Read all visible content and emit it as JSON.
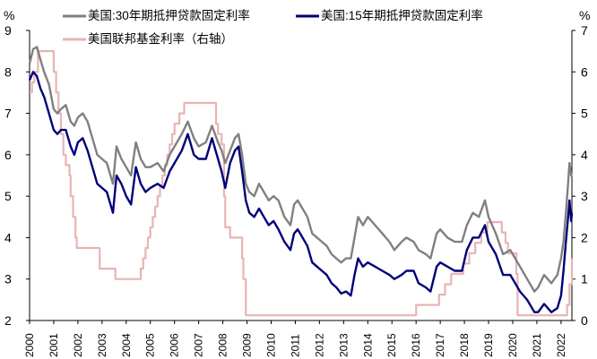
{
  "chart_data": {
    "type": "line",
    "title": "",
    "left_axis": {
      "unit": "%",
      "ylim": [
        2,
        9
      ],
      "ticks": [
        2,
        3,
        4,
        5,
        6,
        7,
        8,
        9
      ]
    },
    "right_axis": {
      "unit": "%",
      "ylim": [
        0,
        7
      ],
      "ticks": [
        0,
        1,
        2,
        3,
        4,
        5,
        6,
        7
      ]
    },
    "x_ticks": [
      "2000",
      "2001",
      "2002",
      "2003",
      "2004",
      "2005",
      "2006",
      "2007",
      "2008",
      "2009",
      "2010",
      "2011",
      "2012",
      "2013",
      "2014",
      "2015",
      "2016",
      "2017",
      "2018",
      "2019",
      "2020",
      "2021",
      "2022"
    ],
    "xlim": [
      2000.0,
      2022.45
    ],
    "legend_position": "top",
    "series": [
      {
        "name": "美国:30年期抵押贷款固定利率",
        "axis": "left",
        "color": "#808080",
        "points": [
          [
            2000.0,
            8.2
          ],
          [
            2000.15,
            8.55
          ],
          [
            2000.3,
            8.6
          ],
          [
            2000.45,
            8.3
          ],
          [
            2000.6,
            8.0
          ],
          [
            2000.8,
            7.7
          ],
          [
            2001.0,
            7.1
          ],
          [
            2001.15,
            7.0
          ],
          [
            2001.3,
            7.1
          ],
          [
            2001.5,
            7.2
          ],
          [
            2001.7,
            6.8
          ],
          [
            2001.85,
            6.7
          ],
          [
            2002.0,
            6.9
          ],
          [
            2002.2,
            7.0
          ],
          [
            2002.4,
            6.8
          ],
          [
            2002.6,
            6.4
          ],
          [
            2002.8,
            6.0
          ],
          [
            2003.0,
            5.9
          ],
          [
            2003.2,
            5.8
          ],
          [
            2003.45,
            5.3
          ],
          [
            2003.6,
            6.2
          ],
          [
            2003.8,
            5.9
          ],
          [
            2004.0,
            5.7
          ],
          [
            2004.2,
            5.5
          ],
          [
            2004.4,
            6.3
          ],
          [
            2004.6,
            5.9
          ],
          [
            2004.8,
            5.7
          ],
          [
            2005.0,
            5.7
          ],
          [
            2005.3,
            5.8
          ],
          [
            2005.55,
            5.6
          ],
          [
            2005.8,
            6.0
          ],
          [
            2006.0,
            6.2
          ],
          [
            2006.3,
            6.5
          ],
          [
            2006.55,
            6.8
          ],
          [
            2006.8,
            6.4
          ],
          [
            2007.0,
            6.2
          ],
          [
            2007.3,
            6.3
          ],
          [
            2007.55,
            6.7
          ],
          [
            2007.8,
            6.3
          ],
          [
            2007.95,
            6.1
          ],
          [
            2008.1,
            5.8
          ],
          [
            2008.3,
            6.1
          ],
          [
            2008.5,
            6.4
          ],
          [
            2008.65,
            6.5
          ],
          [
            2008.8,
            6.0
          ],
          [
            2008.95,
            5.3
          ],
          [
            2009.1,
            5.1
          ],
          [
            2009.3,
            5.0
          ],
          [
            2009.5,
            5.3
          ],
          [
            2009.7,
            5.1
          ],
          [
            2009.9,
            4.9
          ],
          [
            2010.1,
            5.0
          ],
          [
            2010.3,
            4.9
          ],
          [
            2010.55,
            4.5
          ],
          [
            2010.8,
            4.3
          ],
          [
            2010.95,
            4.8
          ],
          [
            2011.1,
            4.9
          ],
          [
            2011.3,
            4.7
          ],
          [
            2011.5,
            4.5
          ],
          [
            2011.7,
            4.1
          ],
          [
            2011.9,
            4.0
          ],
          [
            2012.1,
            3.9
          ],
          [
            2012.3,
            3.8
          ],
          [
            2012.5,
            3.6
          ],
          [
            2012.7,
            3.5
          ],
          [
            2012.9,
            3.4
          ],
          [
            2013.1,
            3.5
          ],
          [
            2013.3,
            3.5
          ],
          [
            2013.45,
            4.0
          ],
          [
            2013.6,
            4.5
          ],
          [
            2013.8,
            4.3
          ],
          [
            2014.0,
            4.5
          ],
          [
            2014.3,
            4.3
          ],
          [
            2014.6,
            4.1
          ],
          [
            2014.9,
            3.9
          ],
          [
            2015.1,
            3.7
          ],
          [
            2015.4,
            3.9
          ],
          [
            2015.6,
            4.0
          ],
          [
            2015.9,
            3.9
          ],
          [
            2016.1,
            3.7
          ],
          [
            2016.4,
            3.6
          ],
          [
            2016.6,
            3.5
          ],
          [
            2016.85,
            4.1
          ],
          [
            2017.0,
            4.2
          ],
          [
            2017.3,
            4.0
          ],
          [
            2017.6,
            3.9
          ],
          [
            2017.9,
            3.9
          ],
          [
            2018.1,
            4.3
          ],
          [
            2018.35,
            4.6
          ],
          [
            2018.6,
            4.5
          ],
          [
            2018.85,
            4.9
          ],
          [
            2019.0,
            4.5
          ],
          [
            2019.3,
            4.1
          ],
          [
            2019.6,
            3.6
          ],
          [
            2019.9,
            3.7
          ],
          [
            2020.1,
            3.5
          ],
          [
            2020.3,
            3.3
          ],
          [
            2020.6,
            3.0
          ],
          [
            2020.9,
            2.7
          ],
          [
            2021.05,
            2.8
          ],
          [
            2021.3,
            3.1
          ],
          [
            2021.6,
            2.9
          ],
          [
            2021.85,
            3.1
          ],
          [
            2022.0,
            3.5
          ],
          [
            2022.1,
            3.9
          ],
          [
            2022.2,
            4.6
          ],
          [
            2022.28,
            5.2
          ],
          [
            2022.35,
            5.8
          ],
          [
            2022.42,
            5.5
          ],
          [
            2022.45,
            5.6
          ]
        ]
      },
      {
        "name": "美国:15年期抵押贷款固定利率",
        "axis": "left",
        "color": "#00007a",
        "points": [
          [
            2000.0,
            7.8
          ],
          [
            2000.15,
            8.0
          ],
          [
            2000.3,
            7.9
          ],
          [
            2000.45,
            7.6
          ],
          [
            2000.6,
            7.4
          ],
          [
            2000.8,
            7.0
          ],
          [
            2001.0,
            6.6
          ],
          [
            2001.15,
            6.5
          ],
          [
            2001.3,
            6.6
          ],
          [
            2001.5,
            6.6
          ],
          [
            2001.7,
            6.2
          ],
          [
            2001.85,
            6.0
          ],
          [
            2002.0,
            6.3
          ],
          [
            2002.2,
            6.4
          ],
          [
            2002.4,
            6.1
          ],
          [
            2002.6,
            5.7
          ],
          [
            2002.8,
            5.3
          ],
          [
            2003.0,
            5.2
          ],
          [
            2003.2,
            5.1
          ],
          [
            2003.45,
            4.6
          ],
          [
            2003.6,
            5.5
          ],
          [
            2003.8,
            5.3
          ],
          [
            2004.0,
            5.0
          ],
          [
            2004.2,
            4.8
          ],
          [
            2004.4,
            5.7
          ],
          [
            2004.6,
            5.3
          ],
          [
            2004.8,
            5.1
          ],
          [
            2005.0,
            5.2
          ],
          [
            2005.3,
            5.3
          ],
          [
            2005.55,
            5.2
          ],
          [
            2005.8,
            5.6
          ],
          [
            2006.0,
            5.8
          ],
          [
            2006.3,
            6.1
          ],
          [
            2006.55,
            6.5
          ],
          [
            2006.8,
            6.0
          ],
          [
            2007.0,
            5.9
          ],
          [
            2007.3,
            5.9
          ],
          [
            2007.55,
            6.4
          ],
          [
            2007.8,
            5.9
          ],
          [
            2007.95,
            5.6
          ],
          [
            2008.1,
            5.2
          ],
          [
            2008.3,
            5.8
          ],
          [
            2008.5,
            6.1
          ],
          [
            2008.65,
            6.2
          ],
          [
            2008.8,
            5.6
          ],
          [
            2008.95,
            4.9
          ],
          [
            2009.1,
            4.6
          ],
          [
            2009.3,
            4.5
          ],
          [
            2009.5,
            4.7
          ],
          [
            2009.7,
            4.5
          ],
          [
            2009.9,
            4.3
          ],
          [
            2010.1,
            4.4
          ],
          [
            2010.3,
            4.2
          ],
          [
            2010.55,
            3.9
          ],
          [
            2010.8,
            3.7
          ],
          [
            2010.95,
            4.1
          ],
          [
            2011.1,
            4.2
          ],
          [
            2011.3,
            4.0
          ],
          [
            2011.5,
            3.8
          ],
          [
            2011.7,
            3.4
          ],
          [
            2011.9,
            3.3
          ],
          [
            2012.1,
            3.2
          ],
          [
            2012.3,
            3.1
          ],
          [
            2012.5,
            2.9
          ],
          [
            2012.7,
            2.8
          ],
          [
            2012.9,
            2.65
          ],
          [
            2013.1,
            2.7
          ],
          [
            2013.3,
            2.6
          ],
          [
            2013.45,
            3.1
          ],
          [
            2013.6,
            3.5
          ],
          [
            2013.8,
            3.3
          ],
          [
            2014.0,
            3.4
          ],
          [
            2014.3,
            3.3
          ],
          [
            2014.6,
            3.2
          ],
          [
            2014.9,
            3.1
          ],
          [
            2015.1,
            3.0
          ],
          [
            2015.4,
            3.1
          ],
          [
            2015.6,
            3.2
          ],
          [
            2015.9,
            3.2
          ],
          [
            2016.1,
            2.9
          ],
          [
            2016.4,
            2.8
          ],
          [
            2016.6,
            2.7
          ],
          [
            2016.85,
            3.3
          ],
          [
            2017.0,
            3.4
          ],
          [
            2017.3,
            3.3
          ],
          [
            2017.6,
            3.2
          ],
          [
            2017.9,
            3.2
          ],
          [
            2018.1,
            3.7
          ],
          [
            2018.35,
            4.0
          ],
          [
            2018.6,
            4.0
          ],
          [
            2018.85,
            4.3
          ],
          [
            2019.0,
            3.9
          ],
          [
            2019.3,
            3.6
          ],
          [
            2019.6,
            3.1
          ],
          [
            2019.9,
            3.1
          ],
          [
            2020.1,
            2.9
          ],
          [
            2020.3,
            2.7
          ],
          [
            2020.6,
            2.5
          ],
          [
            2020.9,
            2.2
          ],
          [
            2021.05,
            2.2
          ],
          [
            2021.3,
            2.4
          ],
          [
            2021.6,
            2.2
          ],
          [
            2021.85,
            2.3
          ],
          [
            2022.0,
            2.6
          ],
          [
            2022.1,
            3.2
          ],
          [
            2022.2,
            3.9
          ],
          [
            2022.28,
            4.4
          ],
          [
            2022.35,
            4.9
          ],
          [
            2022.42,
            4.4
          ],
          [
            2022.45,
            4.6
          ]
        ]
      },
      {
        "name": "美国联邦基金利率（右轴）",
        "axis": "right",
        "color": "#e8b4b4",
        "points": [
          [
            2000.0,
            5.5
          ],
          [
            2000.1,
            5.75
          ],
          [
            2000.2,
            6.0
          ],
          [
            2000.35,
            6.5
          ],
          [
            2000.95,
            6.5
          ],
          [
            2001.0,
            6.0
          ],
          [
            2001.1,
            5.5
          ],
          [
            2001.2,
            5.0
          ],
          [
            2001.3,
            4.5
          ],
          [
            2001.4,
            4.0
          ],
          [
            2001.5,
            3.75
          ],
          [
            2001.65,
            3.5
          ],
          [
            2001.7,
            3.0
          ],
          [
            2001.8,
            2.5
          ],
          [
            2001.9,
            2.0
          ],
          [
            2001.95,
            1.75
          ],
          [
            2002.85,
            1.75
          ],
          [
            2002.9,
            1.25
          ],
          [
            2003.5,
            1.25
          ],
          [
            2003.55,
            1.0
          ],
          [
            2004.5,
            1.0
          ],
          [
            2004.6,
            1.25
          ],
          [
            2004.7,
            1.5
          ],
          [
            2004.8,
            1.75
          ],
          [
            2004.9,
            2.0
          ],
          [
            2005.0,
            2.25
          ],
          [
            2005.1,
            2.5
          ],
          [
            2005.2,
            2.75
          ],
          [
            2005.3,
            3.0
          ],
          [
            2005.4,
            3.25
          ],
          [
            2005.5,
            3.5
          ],
          [
            2005.6,
            3.75
          ],
          [
            2005.7,
            4.0
          ],
          [
            2005.8,
            4.25
          ],
          [
            2005.9,
            4.5
          ],
          [
            2006.0,
            4.75
          ],
          [
            2006.2,
            5.0
          ],
          [
            2006.4,
            5.25
          ],
          [
            2007.7,
            5.25
          ],
          [
            2007.72,
            4.75
          ],
          [
            2007.8,
            4.5
          ],
          [
            2007.95,
            4.25
          ],
          [
            2008.05,
            3.0
          ],
          [
            2008.1,
            2.25
          ],
          [
            2008.3,
            2.0
          ],
          [
            2008.75,
            2.0
          ],
          [
            2008.8,
            1.5
          ],
          [
            2008.85,
            1.0
          ],
          [
            2008.95,
            0.125
          ],
          [
            2015.95,
            0.125
          ],
          [
            2016.0,
            0.375
          ],
          [
            2016.95,
            0.625
          ],
          [
            2017.2,
            0.875
          ],
          [
            2017.45,
            1.125
          ],
          [
            2017.95,
            1.375
          ],
          [
            2018.2,
            1.625
          ],
          [
            2018.45,
            1.875
          ],
          [
            2018.7,
            2.125
          ],
          [
            2018.95,
            2.375
          ],
          [
            2019.55,
            2.125
          ],
          [
            2019.7,
            1.875
          ],
          [
            2019.8,
            1.625
          ],
          [
            2020.15,
            1.125
          ],
          [
            2020.2,
            0.125
          ],
          [
            2022.2,
            0.125
          ],
          [
            2022.25,
            0.375
          ],
          [
            2022.35,
            0.875
          ],
          [
            2022.45,
            1.5
          ]
        ]
      }
    ]
  }
}
